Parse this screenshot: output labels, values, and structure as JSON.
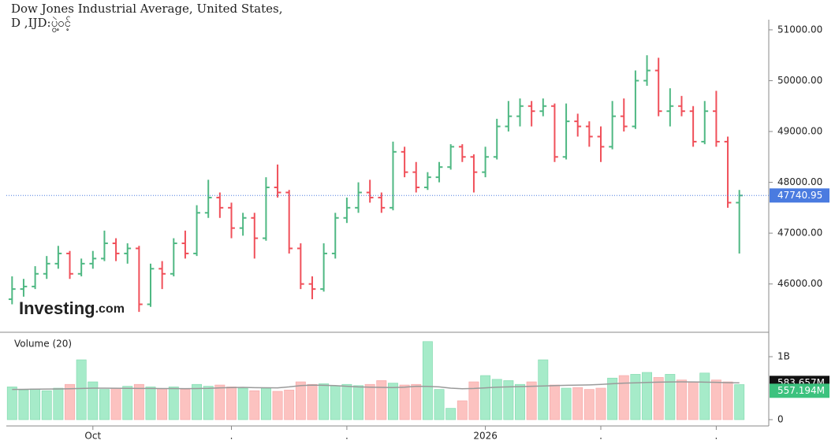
{
  "chart_data": {
    "type": "ohlc",
    "title": "Dow Jones Industrial Average, United States,",
    "subtitle": "D ,IJD:ပွဲ့ဝင့်",
    "brand": "Investing",
    "brand_suffix": ".com",
    "volume_title": "Volume (20)",
    "up_color": "#4fb883",
    "down_color": "#f0505a",
    "volume_up_color": "#a6ebc9",
    "volume_down_color": "#fcc2c0",
    "volume_ma_color": "#9a9a9a",
    "ylim": [
      45050,
      51200
    ],
    "yticks": [
      {
        "value": 46000,
        "label": "46000.00"
      },
      {
        "value": 47000,
        "label": "47000.00"
      },
      {
        "value": 48000,
        "label": "48000.00"
      },
      {
        "value": 49000,
        "label": "49000.00"
      },
      {
        "value": 50000,
        "label": "50000.00"
      },
      {
        "value": 51000,
        "label": "51000.00"
      }
    ],
    "volume_ylim": [
      0,
      1375000000
    ],
    "volume_yticks": [
      0,
      {
        "value": 1000000000,
        "label": "1B"
      }
    ],
    "x_labels": [
      {
        "index": 7,
        "label": "Oct"
      },
      {
        "index": 19,
        "label": "."
      },
      {
        "index": 29,
        "label": "."
      },
      {
        "index": 41,
        "label": "2026"
      },
      {
        "index": 51,
        "label": "."
      },
      {
        "index": 61,
        "label": "."
      }
    ],
    "ohlc": [
      [
        45700,
        46150,
        45600,
        45900
      ],
      [
        45900,
        46100,
        45750,
        45950
      ],
      [
        45950,
        46350,
        45900,
        46200
      ],
      [
        46200,
        46550,
        46100,
        46400
      ],
      [
        46400,
        46750,
        46300,
        46600
      ],
      [
        46600,
        46650,
        46100,
        46200
      ],
      [
        46200,
        46500,
        46150,
        46400
      ],
      [
        46400,
        46650,
        46300,
        46500
      ],
      [
        46500,
        47050,
        46450,
        46800
      ],
      [
        46800,
        46900,
        46450,
        46600
      ],
      [
        46600,
        46800,
        46400,
        46700
      ],
      [
        46700,
        46750,
        45450,
        45600
      ],
      [
        45600,
        46400,
        45550,
        46300
      ],
      [
        46300,
        46450,
        45900,
        46200
      ],
      [
        46200,
        46900,
        46150,
        46800
      ],
      [
        46800,
        47050,
        46500,
        46600
      ],
      [
        46600,
        47550,
        46550,
        47400
      ],
      [
        47400,
        48050,
        47300,
        47700
      ],
      [
        47700,
        47800,
        47300,
        47500
      ],
      [
        47500,
        47600,
        46900,
        47100
      ],
      [
        47100,
        47400,
        46950,
        47300
      ],
      [
        47300,
        47400,
        46500,
        46900
      ],
      [
        46900,
        48100,
        46850,
        47900
      ],
      [
        47900,
        48350,
        47700,
        47800
      ],
      [
        47800,
        47850,
        46600,
        46700
      ],
      [
        46700,
        46800,
        45900,
        46000
      ],
      [
        46000,
        46150,
        45700,
        45900
      ],
      [
        45900,
        46800,
        45850,
        46600
      ],
      [
        46600,
        47400,
        46500,
        47300
      ],
      [
        47300,
        47700,
        47200,
        47500
      ],
      [
        47500,
        48000,
        47400,
        47800
      ],
      [
        47800,
        48050,
        47600,
        47700
      ],
      [
        47700,
        47800,
        47400,
        47500
      ],
      [
        47500,
        48800,
        47450,
        48600
      ],
      [
        48600,
        48700,
        48100,
        48200
      ],
      [
        48200,
        48400,
        47800,
        47900
      ],
      [
        47900,
        48200,
        47850,
        48100
      ],
      [
        48100,
        48400,
        48000,
        48300
      ],
      [
        48300,
        48750,
        48250,
        48700
      ],
      [
        48700,
        48750,
        48400,
        48500
      ],
      [
        48500,
        48550,
        47800,
        48200
      ],
      [
        48200,
        48700,
        48100,
        48500
      ],
      [
        48500,
        49250,
        48450,
        49100
      ],
      [
        49100,
        49600,
        49000,
        49300
      ],
      [
        49300,
        49650,
        49100,
        49500
      ],
      [
        49500,
        49600,
        49100,
        49400
      ],
      [
        49400,
        49650,
        49300,
        49500
      ],
      [
        49500,
        49550,
        48400,
        48500
      ],
      [
        48500,
        49550,
        48450,
        49200
      ],
      [
        49200,
        49350,
        48900,
        49100
      ],
      [
        49100,
        49200,
        48700,
        48900
      ],
      [
        48900,
        49100,
        48400,
        48700
      ],
      [
        48700,
        49600,
        48650,
        49300
      ],
      [
        49300,
        49650,
        49000,
        49100
      ],
      [
        49100,
        50200,
        49050,
        50000
      ],
      [
        50000,
        50500,
        49900,
        50200
      ],
      [
        50200,
        50450,
        49300,
        49400
      ],
      [
        49400,
        49850,
        49100,
        49500
      ],
      [
        49500,
        49700,
        49300,
        49400
      ],
      [
        49400,
        49500,
        48700,
        48800
      ],
      [
        48800,
        49600,
        48750,
        49400
      ],
      [
        49400,
        49800,
        48700,
        48800
      ],
      [
        48800,
        48900,
        47500,
        47600
      ],
      [
        47600,
        47850,
        46600,
        47740.95
      ]
    ],
    "volume": [
      520000000,
      470000000,
      490000000,
      460000000,
      500000000,
      560000000,
      950000000,
      600000000,
      480000000,
      500000000,
      530000000,
      560000000,
      520000000,
      490000000,
      520000000,
      480000000,
      560000000,
      530000000,
      550000000,
      520000000,
      500000000,
      460000000,
      500000000,
      450000000,
      470000000,
      600000000,
      560000000,
      570000000,
      540000000,
      560000000,
      540000000,
      560000000,
      620000000,
      580000000,
      550000000,
      560000000,
      1240000000,
      480000000,
      180000000,
      300000000,
      600000000,
      700000000,
      640000000,
      620000000,
      560000000,
      600000000,
      950000000,
      550000000,
      500000000,
      510000000,
      480000000,
      500000000,
      660000000,
      700000000,
      720000000,
      750000000,
      670000000,
      720000000,
      630000000,
      600000000,
      740000000,
      630000000,
      600000000,
      557194000
    ],
    "volume_ma": [
      480000000,
      482000000,
      485000000,
      486000000,
      488000000,
      490000000,
      495000000,
      500000000,
      500000000,
      498000000,
      497000000,
      496000000,
      495000000,
      494000000,
      493000000,
      492000000,
      494000000,
      497000000,
      505000000,
      510000000,
      512000000,
      508000000,
      506000000,
      505000000,
      520000000,
      540000000,
      548000000,
      545000000,
      540000000,
      530000000,
      520000000,
      515000000,
      512000000,
      510000000,
      515000000,
      530000000,
      528000000,
      520000000,
      500000000,
      490000000,
      495000000,
      505000000,
      515000000,
      520000000,
      525000000,
      530000000,
      535000000,
      540000000,
      545000000,
      548000000,
      552000000,
      560000000,
      570000000,
      580000000,
      585000000,
      590000000,
      595000000,
      598000000,
      600000000,
      598000000,
      596000000,
      592000000,
      588000000,
      583657000
    ],
    "last_volume_label": "557.194M",
    "last_volume_ma_label": "583.657M"
  }
}
